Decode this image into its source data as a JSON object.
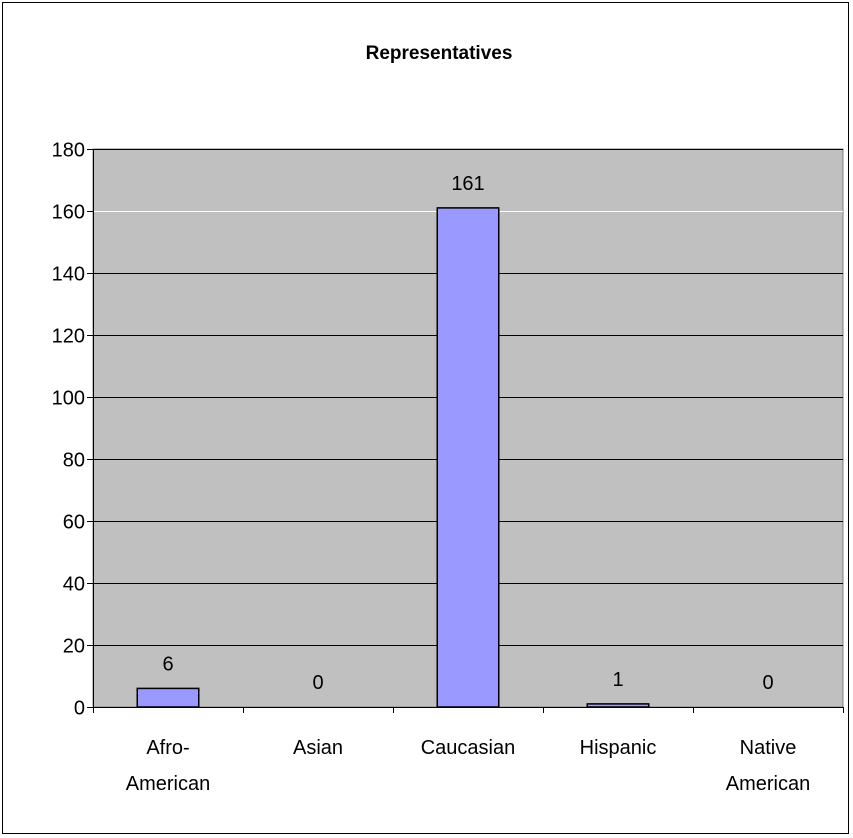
{
  "chart_data": {
    "type": "bar",
    "title": "Representatives",
    "categories": [
      [
        "Afro-",
        "American"
      ],
      [
        "Asian"
      ],
      [
        "Caucasian"
      ],
      [
        "Hispanic"
      ],
      [
        "Native",
        "American"
      ]
    ],
    "values": [
      6,
      0,
      161,
      1,
      0
    ],
    "data_labels": [
      "6",
      "0",
      "161",
      "1",
      "0"
    ],
    "ylim": [
      0,
      180
    ],
    "yticks": [
      "0",
      "20",
      "40",
      "60",
      "80",
      "100",
      "120",
      "140",
      "160",
      "180"
    ],
    "xlabel": "",
    "ylabel": "",
    "grid": true,
    "colors": {
      "plot_bg": "#c0c0c0",
      "bar_fill": "#9999ff",
      "bar_stroke": "#000000",
      "grid": "#000000"
    }
  }
}
